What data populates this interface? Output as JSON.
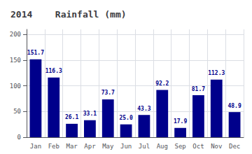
{
  "chart_data": {
    "type": "bar",
    "title": "2014",
    "subtitle": "Rainfall (mm)",
    "categories": [
      "Jan",
      "Feb",
      "Mar",
      "Apr",
      "May",
      "Jun",
      "Jul",
      "Aug",
      "Sep",
      "Oct",
      "Nov",
      "Dec"
    ],
    "values": [
      151.7,
      116.3,
      26.1,
      33.1,
      73.7,
      25.0,
      43.3,
      92.2,
      17.9,
      81.7,
      112.3,
      48.9
    ],
    "value_labels": [
      "151.7",
      "116.3",
      "26.1",
      "33.1",
      "73.7",
      "25.0",
      "43.3",
      "92.2",
      "17.9",
      "81.7",
      "112.3",
      "48.9"
    ],
    "color": "#00008B",
    "ylim": [
      0,
      210
    ],
    "yticks": [
      0,
      50,
      100,
      150,
      200
    ],
    "grid": true,
    "data_labels": true
  }
}
